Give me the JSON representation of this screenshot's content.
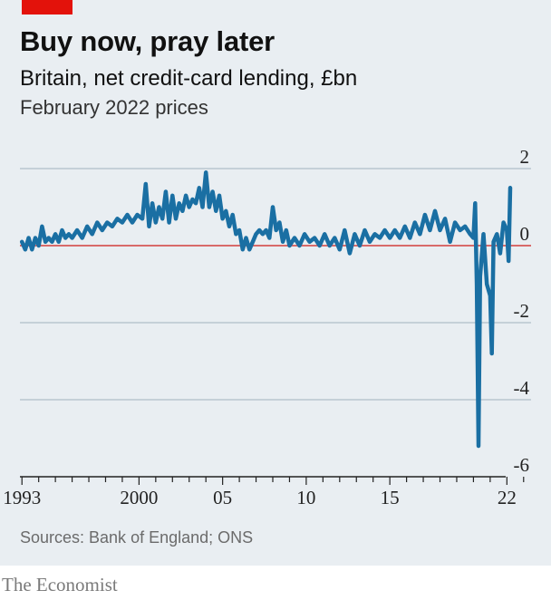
{
  "header": {
    "title": "Buy now, pray later",
    "subtitle": "Britain, net credit-card lending, £bn",
    "note": "February 2022 prices"
  },
  "footer": {
    "source": "Sources: Bank of England; ONS",
    "brand": "The Economist"
  },
  "colors": {
    "line": "#1a6fa3",
    "zero_line": "#d86a6a",
    "grid": "#b9c6cf",
    "background": "#e9eef2",
    "brand_tab": "#e3120b"
  },
  "chart_data": {
    "type": "line",
    "title": "Buy now, pray later",
    "subtitle": "Britain, net credit-card lending, £bn",
    "ylim": [
      -6,
      2
    ],
    "yticks": [
      2,
      0,
      -2,
      -4,
      -6
    ],
    "ytick_labels": [
      "2",
      "0",
      "-2",
      "-4",
      "-6"
    ],
    "xlim": [
      1992.5,
      2023.5
    ],
    "xticks": [
      1993,
      2000,
      2005,
      2010,
      2015,
      2022
    ],
    "xtick_labels": [
      "1993",
      "2000",
      "05",
      "10",
      "15",
      "22"
    ],
    "grid": true,
    "series": [
      {
        "values": [
          [
            1993.0,
            0.1
          ],
          [
            1993.2,
            -0.1
          ],
          [
            1993.4,
            0.2
          ],
          [
            1993.6,
            -0.1
          ],
          [
            1993.8,
            0.2
          ],
          [
            1994.0,
            0.0
          ],
          [
            1994.2,
            0.5
          ],
          [
            1994.4,
            0.1
          ],
          [
            1994.6,
            0.2
          ],
          [
            1994.8,
            0.1
          ],
          [
            1995.0,
            0.3
          ],
          [
            1995.2,
            0.1
          ],
          [
            1995.4,
            0.4
          ],
          [
            1995.6,
            0.2
          ],
          [
            1995.8,
            0.3
          ],
          [
            1996.0,
            0.2
          ],
          [
            1996.3,
            0.4
          ],
          [
            1996.6,
            0.2
          ],
          [
            1996.9,
            0.5
          ],
          [
            1997.2,
            0.3
          ],
          [
            1997.5,
            0.6
          ],
          [
            1997.8,
            0.4
          ],
          [
            1998.1,
            0.6
          ],
          [
            1998.4,
            0.5
          ],
          [
            1998.7,
            0.7
          ],
          [
            1999.0,
            0.6
          ],
          [
            1999.3,
            0.8
          ],
          [
            1999.6,
            0.6
          ],
          [
            1999.9,
            0.8
          ],
          [
            2000.2,
            0.7
          ],
          [
            2000.4,
            1.6
          ],
          [
            2000.6,
            0.5
          ],
          [
            2000.8,
            1.1
          ],
          [
            2001.0,
            0.6
          ],
          [
            2001.2,
            1.0
          ],
          [
            2001.4,
            0.7
          ],
          [
            2001.6,
            1.4
          ],
          [
            2001.8,
            0.6
          ],
          [
            2002.0,
            1.3
          ],
          [
            2002.2,
            0.7
          ],
          [
            2002.4,
            1.1
          ],
          [
            2002.6,
            0.9
          ],
          [
            2002.8,
            1.3
          ],
          [
            2003.0,
            1.0
          ],
          [
            2003.2,
            1.2
          ],
          [
            2003.4,
            1.1
          ],
          [
            2003.6,
            1.5
          ],
          [
            2003.8,
            1.0
          ],
          [
            2004.0,
            1.9
          ],
          [
            2004.2,
            1.0
          ],
          [
            2004.4,
            1.4
          ],
          [
            2004.6,
            0.9
          ],
          [
            2004.8,
            1.3
          ],
          [
            2005.0,
            0.7
          ],
          [
            2005.2,
            0.9
          ],
          [
            2005.4,
            0.5
          ],
          [
            2005.6,
            0.8
          ],
          [
            2005.8,
            0.3
          ],
          [
            2006.0,
            0.4
          ],
          [
            2006.2,
            -0.1
          ],
          [
            2006.4,
            0.2
          ],
          [
            2006.6,
            -0.1
          ],
          [
            2006.8,
            0.1
          ],
          [
            2007.0,
            0.3
          ],
          [
            2007.2,
            0.4
          ],
          [
            2007.4,
            0.3
          ],
          [
            2007.6,
            0.4
          ],
          [
            2007.8,
            0.2
          ],
          [
            2008.0,
            1.0
          ],
          [
            2008.2,
            0.4
          ],
          [
            2008.4,
            0.6
          ],
          [
            2008.6,
            0.1
          ],
          [
            2008.8,
            0.4
          ],
          [
            2009.0,
            0.0
          ],
          [
            2009.3,
            0.2
          ],
          [
            2009.6,
            0.0
          ],
          [
            2009.9,
            0.3
          ],
          [
            2010.2,
            0.1
          ],
          [
            2010.5,
            0.2
          ],
          [
            2010.8,
            0.0
          ],
          [
            2011.1,
            0.3
          ],
          [
            2011.4,
            0.0
          ],
          [
            2011.7,
            0.2
          ],
          [
            2012.0,
            -0.1
          ],
          [
            2012.3,
            0.4
          ],
          [
            2012.6,
            -0.2
          ],
          [
            2012.9,
            0.3
          ],
          [
            2013.2,
            0.0
          ],
          [
            2013.5,
            0.4
          ],
          [
            2013.8,
            0.1
          ],
          [
            2014.1,
            0.3
          ],
          [
            2014.4,
            0.2
          ],
          [
            2014.7,
            0.4
          ],
          [
            2015.0,
            0.2
          ],
          [
            2015.3,
            0.4
          ],
          [
            2015.6,
            0.2
          ],
          [
            2015.9,
            0.5
          ],
          [
            2016.2,
            0.2
          ],
          [
            2016.5,
            0.6
          ],
          [
            2016.8,
            0.3
          ],
          [
            2017.1,
            0.8
          ],
          [
            2017.4,
            0.4
          ],
          [
            2017.7,
            0.9
          ],
          [
            2018.0,
            0.4
          ],
          [
            2018.3,
            0.7
          ],
          [
            2018.6,
            0.1
          ],
          [
            2018.9,
            0.6
          ],
          [
            2019.2,
            0.4
          ],
          [
            2019.5,
            0.5
          ],
          [
            2019.8,
            0.3
          ],
          [
            2020.0,
            0.2
          ],
          [
            2020.1,
            1.1
          ],
          [
            2020.2,
            -1.0
          ],
          [
            2020.3,
            -5.2
          ],
          [
            2020.4,
            -0.8
          ],
          [
            2020.6,
            0.3
          ],
          [
            2020.8,
            -1.0
          ],
          [
            2021.0,
            -1.3
          ],
          [
            2021.1,
            -2.8
          ],
          [
            2021.2,
            0.1
          ],
          [
            2021.4,
            0.3
          ],
          [
            2021.6,
            -0.2
          ],
          [
            2021.8,
            0.6
          ],
          [
            2022.0,
            0.4
          ],
          [
            2022.1,
            -0.4
          ],
          [
            2022.2,
            1.5
          ]
        ]
      }
    ]
  }
}
